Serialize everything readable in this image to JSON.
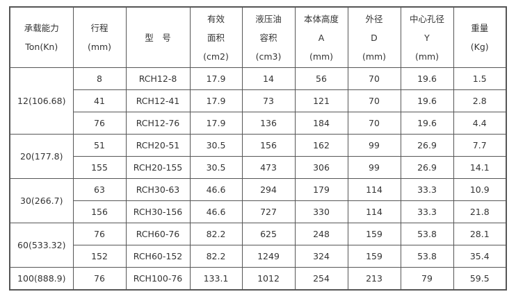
{
  "headers": [
    [
      "承载能力",
      "Ton(Kn)"
    ],
    [
      "行程",
      "(mm)"
    ],
    [
      "型　号"
    ],
    [
      "有效",
      "面积",
      "(cm2)"
    ],
    [
      "液压油",
      "容积",
      "(cm3)"
    ],
    [
      "本体高度",
      "A",
      "(mm)"
    ],
    [
      "外径",
      "D",
      "(mm)"
    ],
    [
      "中心孔径",
      "Y",
      "(mm)"
    ],
    [
      "重量",
      "(Kg)"
    ]
  ],
  "groups": [
    {
      "capacity": "12(106.68)",
      "rows": [
        [
          "8",
          "RCH12-8",
          "17.9",
          "14",
          "56",
          "70",
          "19.6",
          "1.5"
        ],
        [
          "41",
          "RCH12-41",
          "17.9",
          "73",
          "121",
          "70",
          "19.6",
          "2.8"
        ],
        [
          "76",
          "RCH12-76",
          "17.9",
          "136",
          "184",
          "70",
          "19.6",
          "4.4"
        ]
      ]
    },
    {
      "capacity": "20(177.8)",
      "rows": [
        [
          "51",
          "RCH20-51",
          "30.5",
          "156",
          "162",
          "99",
          "26.9",
          "7.7"
        ],
        [
          "155",
          "RCH20-155",
          "30.5",
          "473",
          "306",
          "99",
          "26.9",
          "14.1"
        ]
      ]
    },
    {
      "capacity": "30(266.7)",
      "rows": [
        [
          "63",
          "RCH30-63",
          "46.6",
          "294",
          "179",
          "114",
          "33.3",
          "10.9"
        ],
        [
          "156",
          "RCH30-156",
          "46.6",
          "727",
          "330",
          "114",
          "33.3",
          "21.8"
        ]
      ]
    },
    {
      "capacity": "60(533.32)",
      "rows": [
        [
          "76",
          "RCH60-76",
          "82.2",
          "625",
          "248",
          "159",
          "53.8",
          "28.1"
        ],
        [
          "152",
          "RCH60-152",
          "82.2",
          "1249",
          "324",
          "159",
          "53.8",
          "35.4"
        ]
      ]
    },
    {
      "capacity": "100(888.9)",
      "rows": [
        [
          "76",
          "RCH100-76",
          "133.1",
          "1012",
          "254",
          "213",
          "79",
          "59.5"
        ]
      ]
    }
  ]
}
